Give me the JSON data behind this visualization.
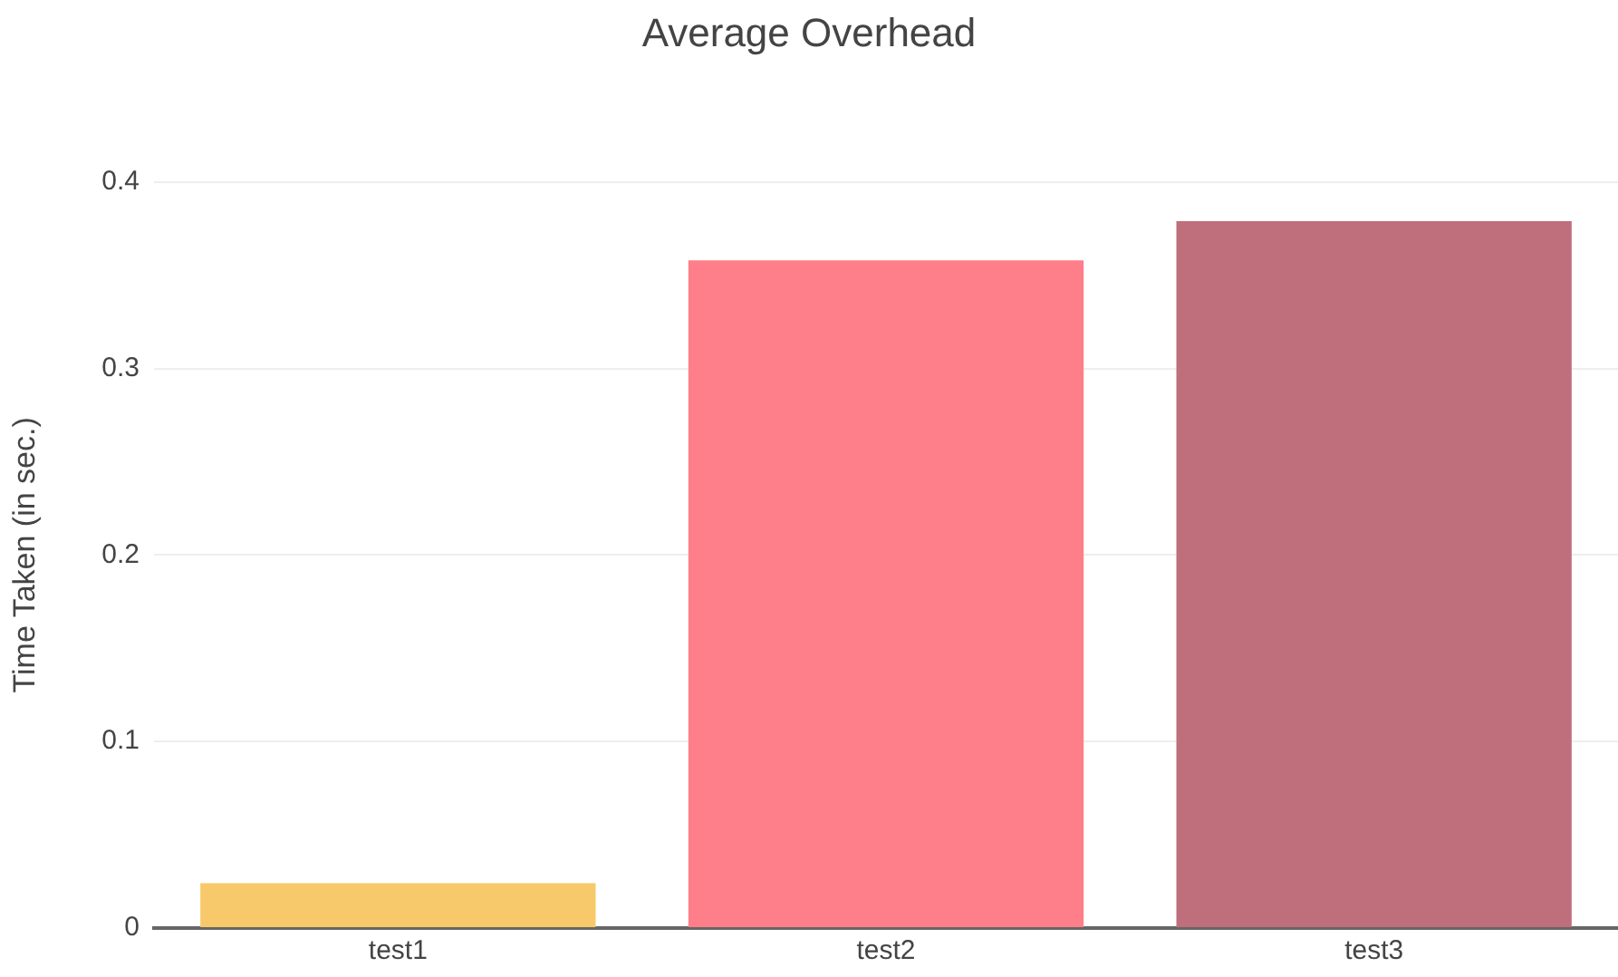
{
  "chart_data": {
    "type": "bar",
    "title": "Average Overhead",
    "ylabel": "Time Taken (in sec.)",
    "categories": [
      "test1",
      "test2",
      "test3"
    ],
    "values": [
      0.024,
      0.358,
      0.379
    ],
    "colors": [
      "#f7c96a",
      "#fe7f8a",
      "#bf6e7b"
    ],
    "ylim": [
      0,
      0.4
    ],
    "yticks": [
      0,
      0.1,
      0.2,
      0.3,
      0.4
    ],
    "grid": "y",
    "legend": false
  }
}
